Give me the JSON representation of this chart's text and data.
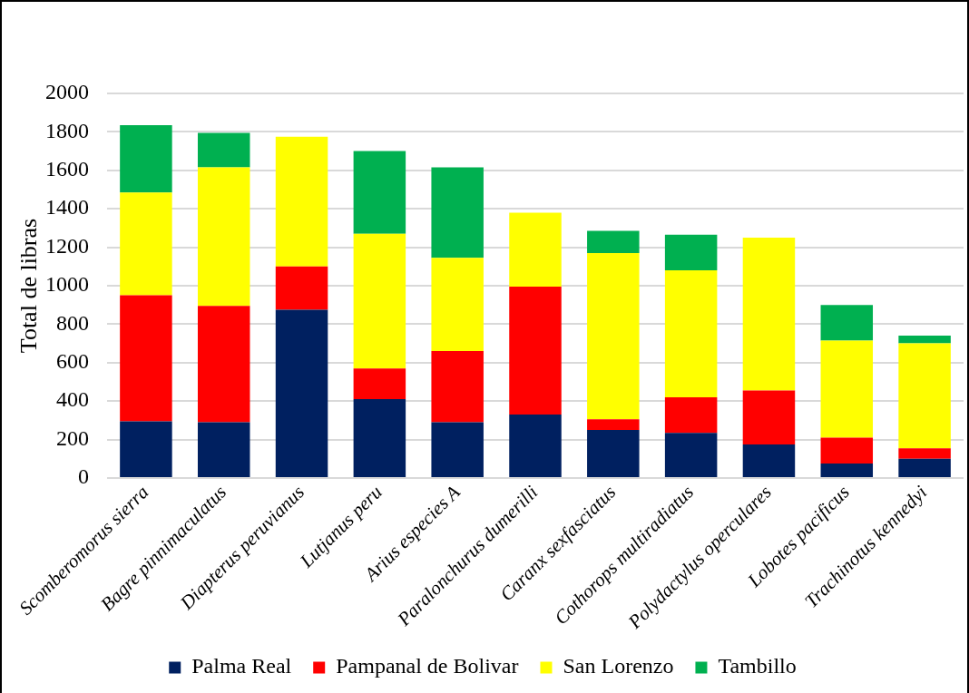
{
  "chart_data": {
    "type": "bar",
    "stacked": true,
    "ylabel": "Total de libras",
    "categories": [
      "Scomberomorus sierra",
      "Bagre pinnimaculatus",
      "Diapterus peruvianus",
      "Lutjanus peru",
      "Arius especies A",
      "Paralonchurus dumerilli",
      "Caranx sexfasciatus",
      "Cothorops multiradiatus",
      "Polydactylus operculares",
      "Lobotes pacificus",
      "Trachinotus kennedyi"
    ],
    "series": [
      {
        "name": "Palma Real",
        "color": "#002060",
        "values": [
          295,
          290,
          875,
          410,
          290,
          330,
          250,
          235,
          175,
          75,
          100
        ]
      },
      {
        "name": "Pampanal de Bolivar",
        "color": "#ff0000",
        "values": [
          655,
          605,
          225,
          160,
          370,
          665,
          55,
          185,
          280,
          135,
          55
        ]
      },
      {
        "name": "San Lorenzo",
        "color": "#ffff00",
        "values": [
          535,
          720,
          675,
          700,
          485,
          385,
          865,
          660,
          795,
          505,
          545
        ]
      },
      {
        "name": "Tambillo",
        "color": "#00b050",
        "values": [
          350,
          180,
          null,
          430,
          470,
          null,
          115,
          185,
          null,
          185,
          40
        ]
      }
    ],
    "ylim": [
      0,
      2000
    ],
    "yticks": [
      0,
      200,
      400,
      600,
      800,
      1000,
      1200,
      1400,
      1600,
      1800,
      2000
    ],
    "grid": "y",
    "legend": "bottom"
  }
}
